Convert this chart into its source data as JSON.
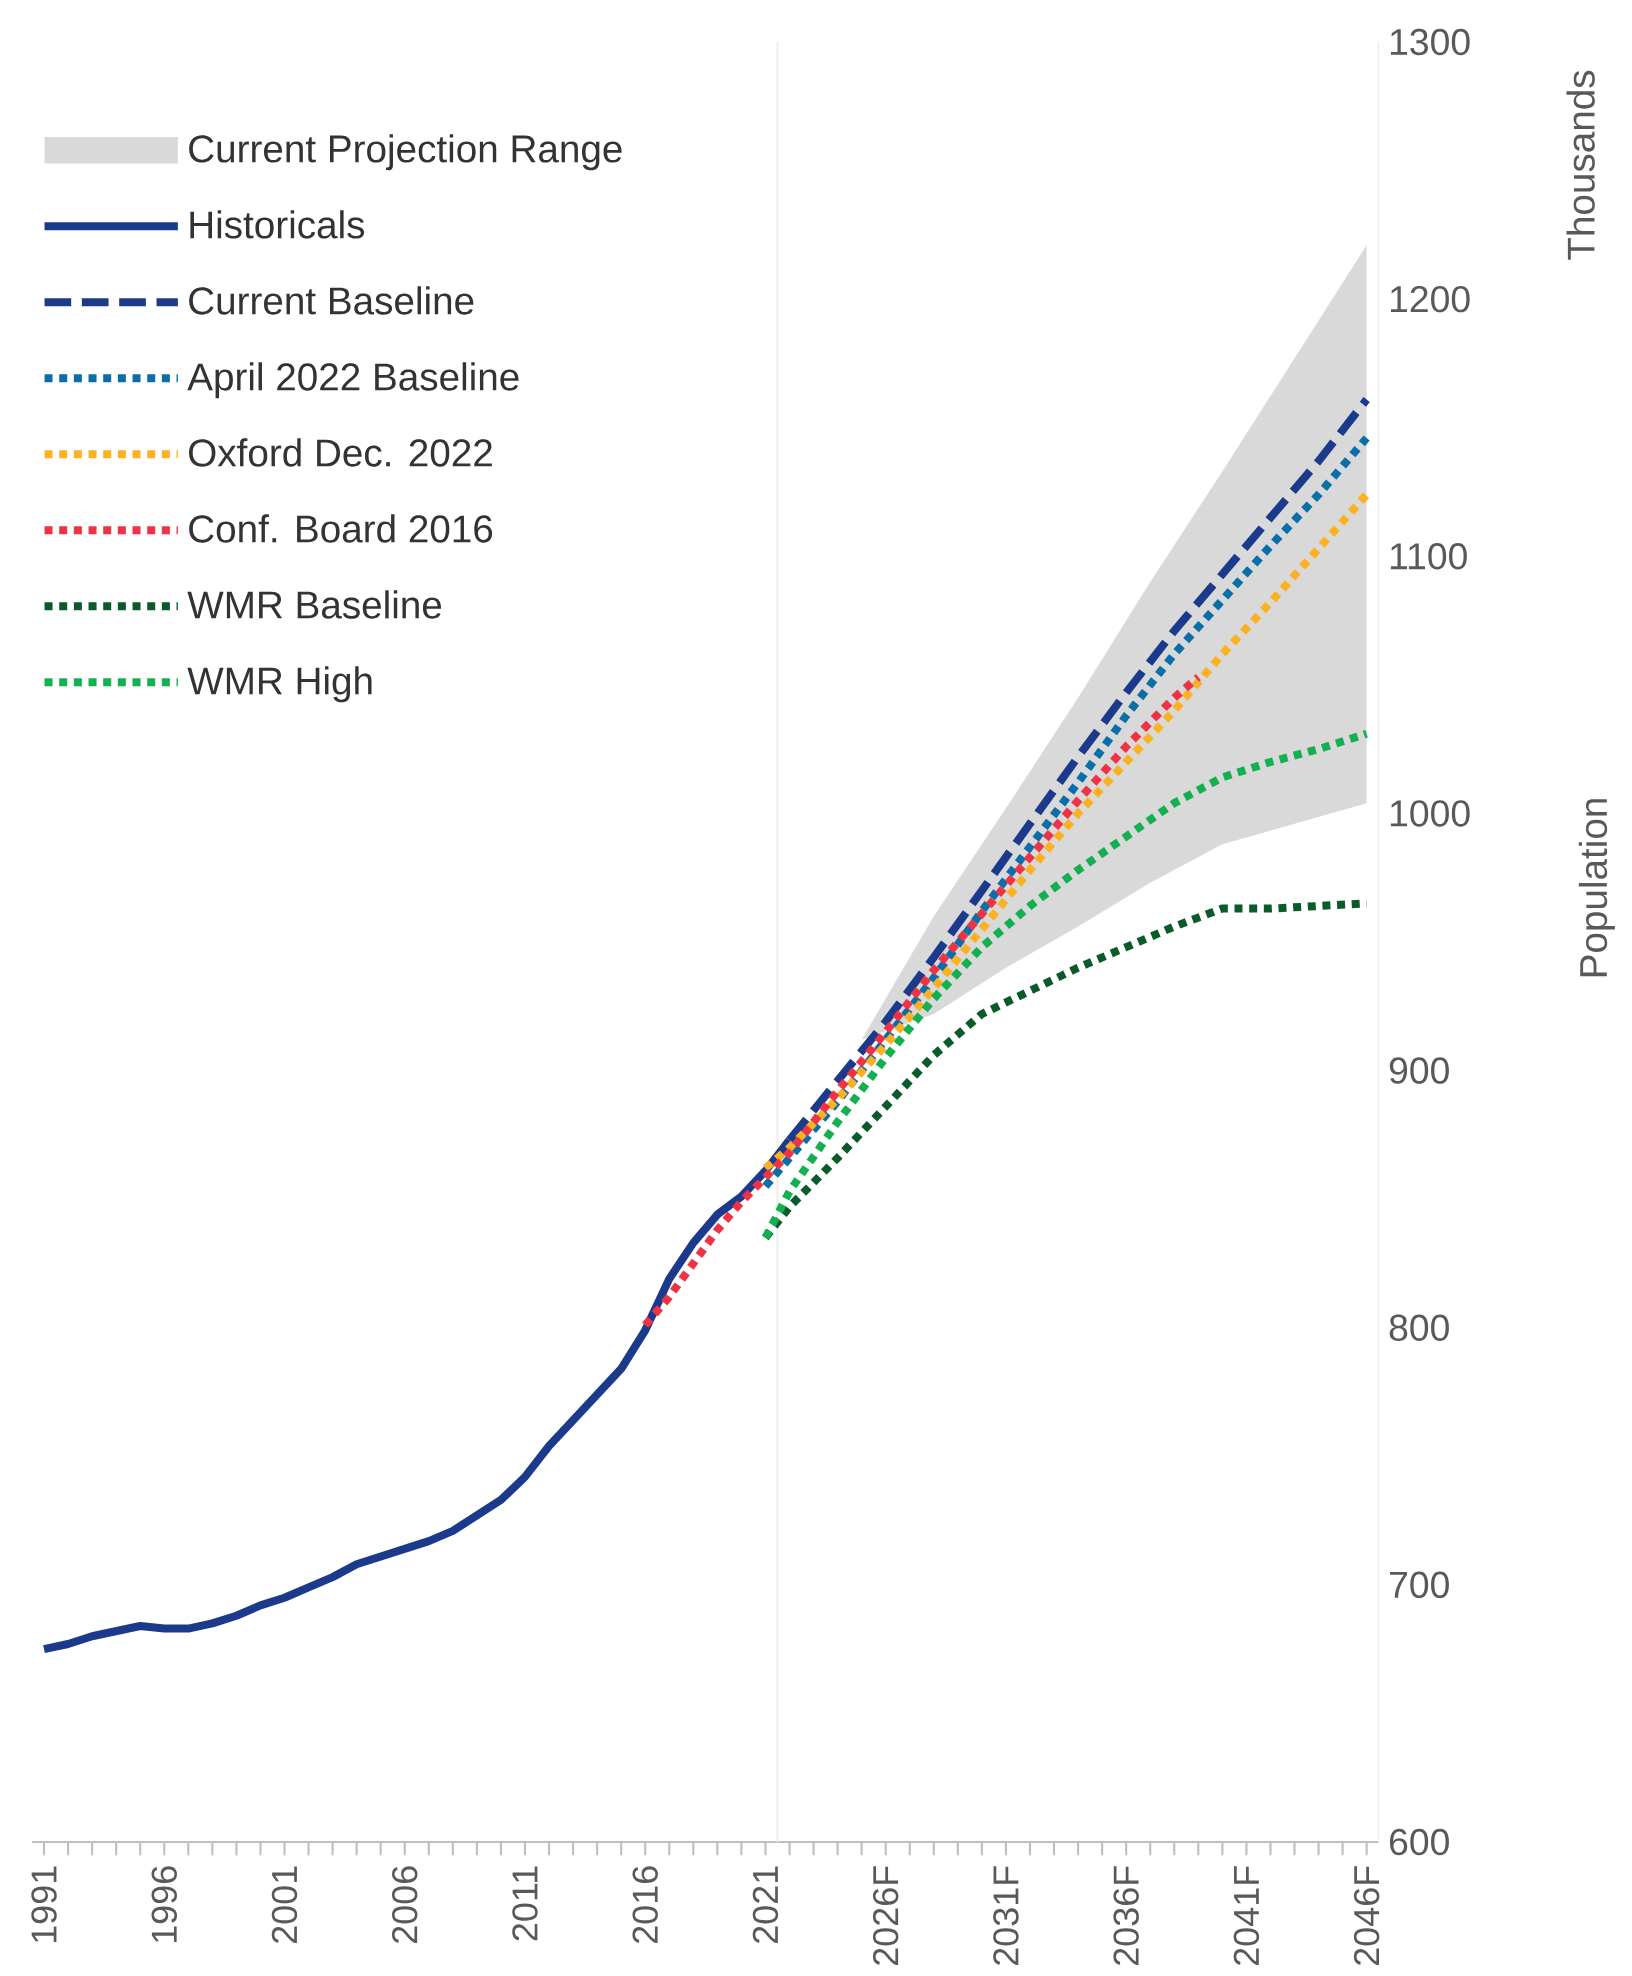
{
  "chart_data": {
    "type": "line",
    "ylabel": "Population",
    "annotations": [
      "Thousands"
    ],
    "xlim": [
      1990.5,
      2046.5
    ],
    "ylim": [
      600,
      1300
    ],
    "xticks": [
      1991,
      1996,
      2001,
      2006,
      2011,
      2016,
      2021,
      {
        "value": 2026,
        "label": "2026F"
      },
      {
        "value": 2031,
        "label": "2031F"
      },
      {
        "value": 2036,
        "label": "2036F"
      },
      {
        "value": 2041,
        "label": "2041F"
      },
      {
        "value": 2046,
        "label": "2046F"
      }
    ],
    "yticks": [
      600,
      700,
      800,
      900,
      1000,
      1100,
      1200,
      1300
    ],
    "grid": false,
    "legend": "top left",
    "marker": "none",
    "ref_lines": [
      {
        "axis": "x",
        "value": 2021.5,
        "color": "#eeeeee"
      }
    ],
    "series": [
      {
        "name": "Current Projection Range",
        "color": "#d9d9d9",
        "x": [
          2025,
          2028,
          2031,
          2034,
          2037,
          2040,
          2046
        ],
        "values": [
          null,
          null,
          null,
          null,
          null,
          null,
          null
        ],
        "lower": [
          912,
          922,
          940,
          956,
          973,
          988,
          1004
        ],
        "upper": [
          912,
          960,
          1002,
          1045,
          1090,
          1133,
          1221
        ]
      },
      {
        "name": "Historicals",
        "color": "#1b3a8c",
        "line_style": "solid",
        "x": [
          1991,
          1992,
          1993,
          1994,
          1995,
          1996,
          1997,
          1998,
          1999,
          2000,
          2001,
          2002,
          2003,
          2004,
          2005,
          2006,
          2007,
          2008,
          2009,
          2010,
          2011,
          2012,
          2013,
          2014,
          2015,
          2016,
          2017,
          2018,
          2019,
          2020,
          2021,
          2022
        ],
        "values": [
          675,
          677,
          680,
          682,
          684,
          683,
          683,
          685,
          688,
          692,
          695,
          699,
          703,
          708,
          711,
          714,
          717,
          721,
          727,
          733,
          742,
          754,
          764,
          774,
          784,
          799,
          819,
          833,
          844,
          851,
          861,
          873
        ]
      },
      {
        "name": "Current Baseline",
        "color": "#1b3a8c",
        "line_style": "dashed",
        "x": [
          2022,
          2024,
          2026,
          2028,
          2030,
          2032,
          2034,
          2036,
          2038,
          2040,
          2042,
          2044,
          2046
        ],
        "values": [
          873,
          896,
          919,
          944,
          970,
          996,
          1022,
          1047,
          1071,
          1093,
          1115,
          1137,
          1161
        ]
      },
      {
        "name": "April 2022 Baseline",
        "color": "#0a6fa8",
        "line_style": "dotted",
        "x": [
          2021,
          2022,
          2024,
          2026,
          2028,
          2030,
          2032,
          2034,
          2036,
          2038,
          2040,
          2042,
          2044,
          2046
        ],
        "values": [
          855,
          866,
          888,
          912,
          936,
          962,
          987,
          1012,
          1038,
          1062,
          1083,
          1104,
          1124,
          1146
        ]
      },
      {
        "name": "Oxford Dec. 2022",
        "color": "#fbb122",
        "line_style": "dotted",
        "x": [
          2021,
          2022,
          2024,
          2026,
          2028,
          2030,
          2032,
          2034,
          2036,
          2038,
          2040,
          2042,
          2044,
          2046
        ],
        "values": [
          862,
          870,
          889,
          910,
          932,
          955,
          978,
          1000,
          1020,
          1040,
          1062,
          1082,
          1103,
          1124
        ]
      },
      {
        "name": "Conf. Board 2016",
        "color": "#ee3344",
        "line_style": "dotted",
        "x": [
          2016,
          2017,
          2018,
          2019,
          2020,
          2022,
          2024,
          2026,
          2028,
          2030,
          2032,
          2034,
          2036,
          2038,
          2039
        ],
        "values": [
          801,
          812,
          825,
          838,
          849,
          868,
          892,
          915,
          939,
          961,
          983,
          1005,
          1026,
          1045,
          1053
        ]
      },
      {
        "name": "WMR Baseline",
        "color": "#0b5a2a",
        "line_style": "dotted",
        "x": [
          2021,
          2022,
          2024,
          2026,
          2028,
          2030,
          2032,
          2034,
          2036,
          2038,
          2040,
          2042,
          2044,
          2046
        ],
        "values": [
          835,
          847,
          866,
          886,
          906,
          922,
          931,
          940,
          948,
          956,
          963,
          963,
          964,
          965
        ]
      },
      {
        "name": "WMR High",
        "color": "#13b050",
        "line_style": "dotted",
        "x": [
          2021,
          2022,
          2024,
          2026,
          2028,
          2030,
          2032,
          2034,
          2036,
          2038,
          2040,
          2042,
          2044,
          2046
        ],
        "values": [
          835,
          853,
          880,
          905,
          928,
          948,
          964,
          978,
          991,
          1004,
          1014,
          1020,
          1025,
          1031
        ]
      }
    ]
  }
}
